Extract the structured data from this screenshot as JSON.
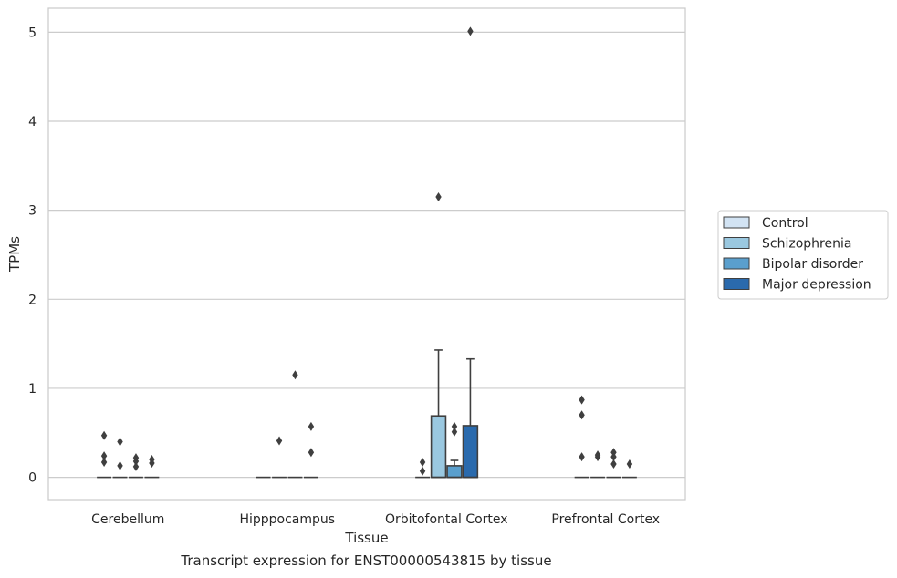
{
  "caption": "Transcript expression for ENST00000543815 by tissue",
  "chart_data": {
    "type": "box",
    "xlabel": "Tissue",
    "ylabel": "TPMs",
    "ylim": [
      -0.25,
      5.27
    ],
    "yticks": [
      0,
      1,
      2,
      3,
      4,
      5
    ],
    "grid": true,
    "legend_position": "right",
    "categories": [
      "Cerebellum",
      "Hipppocampus",
      "Orbitofontal Cortex",
      "Prefrontal Cortex"
    ],
    "series": [
      {
        "name": "Control",
        "color": "#d2e3f3",
        "boxes": [
          {
            "q1": 0,
            "median": 0,
            "q3": 0,
            "whislo": 0,
            "whishi": 0,
            "fliers": [
              0.47,
              0.24,
              0.17
            ]
          },
          {
            "q1": 0,
            "median": 0,
            "q3": 0,
            "whislo": 0,
            "whishi": 0,
            "fliers": []
          },
          {
            "q1": 0,
            "median": 0,
            "q3": 0,
            "whislo": 0,
            "whishi": 0,
            "fliers": [
              0.17,
              0.07
            ]
          },
          {
            "q1": 0,
            "median": 0,
            "q3": 0,
            "whislo": 0,
            "whishi": 0,
            "fliers": [
              0.87,
              0.7,
              0.23
            ]
          }
        ]
      },
      {
        "name": "Schizophrenia",
        "color": "#9ac8e0",
        "boxes": [
          {
            "q1": 0,
            "median": 0,
            "q3": 0,
            "whislo": 0,
            "whishi": 0,
            "fliers": [
              0.4,
              0.13
            ]
          },
          {
            "q1": 0,
            "median": 0,
            "q3": 0,
            "whislo": 0,
            "whishi": 0,
            "fliers": [
              0.41
            ]
          },
          {
            "q1": 0,
            "median": 0,
            "q3": 0.69,
            "whislo": 0,
            "whishi": 1.43,
            "fliers": [
              3.15
            ]
          },
          {
            "q1": 0,
            "median": 0,
            "q3": 0,
            "whislo": 0,
            "whishi": 0,
            "fliers": [
              0.25,
              0.23
            ]
          }
        ]
      },
      {
        "name": "Bipolar disorder",
        "color": "#5a9fcd",
        "boxes": [
          {
            "q1": 0,
            "median": 0,
            "q3": 0,
            "whislo": 0,
            "whishi": 0,
            "fliers": [
              0.22,
              0.18,
              0.12
            ]
          },
          {
            "q1": 0,
            "median": 0,
            "q3": 0,
            "whislo": 0,
            "whishi": 0,
            "fliers": [
              1.15
            ]
          },
          {
            "q1": 0,
            "median": 0,
            "q3": 0.13,
            "whislo": 0,
            "whishi": 0.19,
            "fliers": [
              0.57,
              0.51
            ]
          },
          {
            "q1": 0,
            "median": 0,
            "q3": 0,
            "whislo": 0,
            "whishi": 0,
            "fliers": [
              0.28,
              0.23,
              0.15
            ]
          }
        ]
      },
      {
        "name": "Major depression",
        "color": "#2a6aad",
        "boxes": [
          {
            "q1": 0,
            "median": 0,
            "q3": 0,
            "whislo": 0,
            "whishi": 0,
            "fliers": [
              0.2,
              0.16
            ]
          },
          {
            "q1": 0,
            "median": 0,
            "q3": 0,
            "whislo": 0,
            "whishi": 0,
            "fliers": [
              0.57,
              0.28
            ]
          },
          {
            "q1": 0,
            "median": 0,
            "q3": 0.58,
            "whislo": 0,
            "whishi": 1.33,
            "fliers": [
              5.01
            ]
          },
          {
            "q1": 0,
            "median": 0,
            "q3": 0,
            "whislo": 0,
            "whishi": 0,
            "fliers": [
              0.15
            ]
          }
        ]
      }
    ]
  }
}
